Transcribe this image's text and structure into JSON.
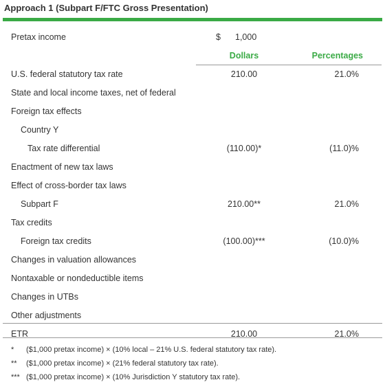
{
  "title": "Approach 1 (Subpart F/FTC Gross Presentation)",
  "pretax": {
    "label": "Pretax income",
    "currency": "$",
    "amount": "1,000"
  },
  "columns": [
    "Dollars",
    "Percentages"
  ],
  "rows": [
    {
      "label": "U.S. federal statutory tax rate",
      "dollars": "210.00",
      "percent": "21.0%"
    },
    {
      "label": "State and local income taxes, net of federal"
    },
    {
      "label": "Foreign tax effects",
      "children": [
        {
          "label": "Country Y",
          "children": [
            {
              "label": "Tax rate differential",
              "dollars": "(110.00)*",
              "percent": "(11.0)%"
            }
          ]
        }
      ]
    },
    {
      "label": "Enactment of new tax laws"
    },
    {
      "label": "Effect of cross-border tax laws",
      "children": [
        {
          "label": "Subpart F",
          "dollars": "210.00**",
          "percent": "21.0%"
        }
      ]
    },
    {
      "label": "Tax credits",
      "children": [
        {
          "label": "Foreign tax credits",
          "dollars": "(100.00)***",
          "percent": "(10.0)%"
        }
      ]
    },
    {
      "label": "Changes in valuation allowances"
    },
    {
      "label": "Nontaxable or nondeductible items"
    },
    {
      "label": "Changes in UTBs"
    },
    {
      "label": "Other adjustments"
    }
  ],
  "total": {
    "label": "ETR",
    "dollars": "210.00",
    "percent": "21.0%"
  },
  "footnotes": [
    {
      "marker": "*",
      "text": "($1,000 pretax income) × (10% local – 21% U.S. federal statutory tax rate)."
    },
    {
      "marker": "**",
      "text": "($1,000 pretax income) × (21% federal statutory tax rate)."
    },
    {
      "marker": "***",
      "text": "($1,000 pretax income) × (10% Jurisdiction Y statutory tax rate)."
    }
  ]
}
